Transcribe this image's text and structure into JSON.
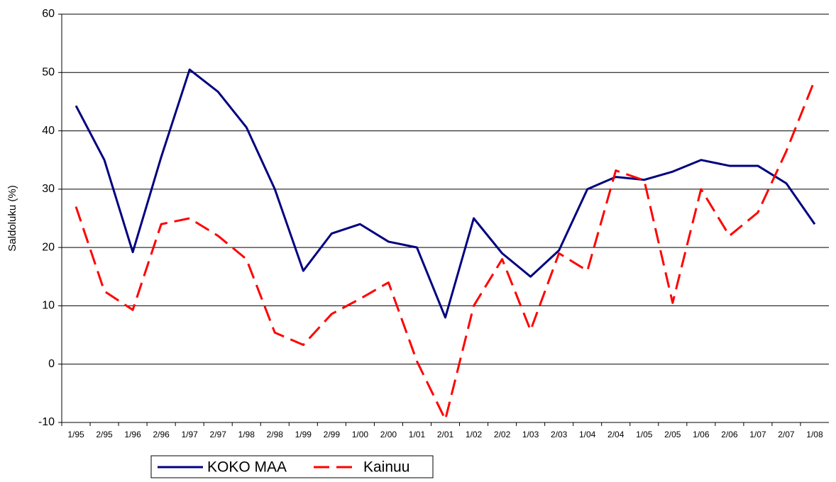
{
  "chart_data": {
    "type": "line",
    "y_label": "Saldoluku (%)",
    "categories": [
      "1/95",
      "2/95",
      "1/96",
      "2/96",
      "1/97",
      "2/97",
      "1/98",
      "2/98",
      "1/99",
      "2/99",
      "1/00",
      "2/00",
      "1/01",
      "2/01",
      "1/02",
      "2/02",
      "1/03",
      "2/03",
      "1/04",
      "2/04",
      "1/05",
      "2/05",
      "1/06",
      "2/06",
      "1/07",
      "2/07",
      "1/08"
    ],
    "series": [
      {
        "name": "KOKO MAA",
        "color": "#000080",
        "line_style": "solid",
        "values": [
          44.3,
          35,
          19.2,
          35.5,
          50.5,
          46.7,
          40.6,
          30,
          16,
          22.4,
          24,
          21,
          20,
          8,
          25,
          19,
          15,
          19.5,
          30,
          32.1,
          31.6,
          33,
          35,
          34,
          34,
          31,
          24
        ]
      },
      {
        "name": "Kainuu",
        "color": "#ff0000",
        "line_style": "dashed",
        "values": [
          27,
          12.5,
          9.3,
          24,
          25,
          22,
          18,
          5.4,
          3.3,
          8.6,
          11.2,
          14,
          0.5,
          -9.5,
          10,
          18,
          5.8,
          19,
          16,
          33.2,
          31.5,
          10.5,
          30,
          22,
          26,
          36.5,
          48.7
        ]
      }
    ],
    "ylim": [
      -10,
      60
    ],
    "yticks": [
      -10,
      0,
      10,
      20,
      30,
      40,
      50,
      60
    ],
    "grid": true,
    "legend": "bottom"
  }
}
